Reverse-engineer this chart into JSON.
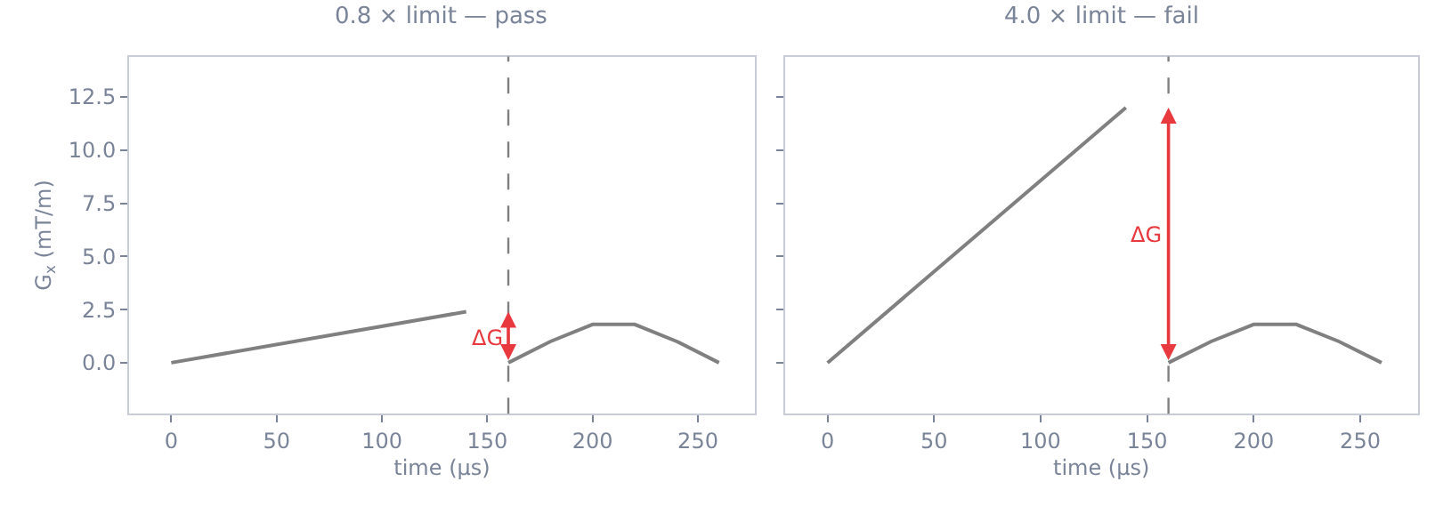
{
  "chart_data": [
    {
      "type": "line",
      "title": "0.8 × limit — pass",
      "xlabel": "time (µs)",
      "ylabel": "G$_{x}$ (mT/m)",
      "series": [
        {
          "color": "#808080",
          "x": [
            0,
            140
          ],
          "values": [
            0,
            2.4
          ]
        },
        {
          "color": "#808080",
          "x": [
            160,
            180,
            200,
            220,
            240,
            260
          ],
          "values": [
            0,
            1.0,
            1.8,
            1.8,
            1.0,
            0
          ]
        }
      ],
      "xlim": [
        -20,
        277
      ],
      "xticks": [
        0,
        50,
        100,
        150,
        200,
        250
      ],
      "ylim": [
        -2.4,
        14.4
      ],
      "yticks": [
        {
          "value": 0,
          "label": "0.0"
        },
        2.5,
        {
          "value": 5,
          "label": "5.0"
        },
        7.5,
        {
          "value": 10,
          "label": "10.0"
        },
        12.5
      ],
      "ref_lines": [
        {
          "axis": "x",
          "value": 160,
          "color": "#808080",
          "line_style": "dashed"
        }
      ],
      "annotations": [
        {
          "text": "ΔG",
          "x": 160,
          "y": 1.2
        }
      ]
    },
    {
      "type": "line",
      "title": "4.0 × limit — fail",
      "xlabel": "time (µs)",
      "series": [
        {
          "color": "#808080",
          "x": [
            0,
            140
          ],
          "values": [
            0,
            12.0
          ]
        },
        {
          "color": "#808080",
          "x": [
            160,
            180,
            200,
            220,
            240,
            260
          ],
          "values": [
            0,
            1.0,
            1.8,
            1.8,
            1.0,
            0
          ]
        }
      ],
      "xlim": [
        -20,
        277
      ],
      "xticks": [
        0,
        50,
        100,
        150,
        200,
        250
      ],
      "ylim": [
        -2.4,
        14.4
      ],
      "yticks": [
        0,
        2.5,
        5,
        7.5,
        10,
        12.5
      ],
      "ref_lines": [
        {
          "axis": "x",
          "value": 160,
          "color": "#808080",
          "line_style": "dashed"
        }
      ],
      "annotations": [
        {
          "text": "ΔG",
          "x": 160,
          "y": 6.0
        }
      ],
      "tick_labels": "x"
    }
  ]
}
